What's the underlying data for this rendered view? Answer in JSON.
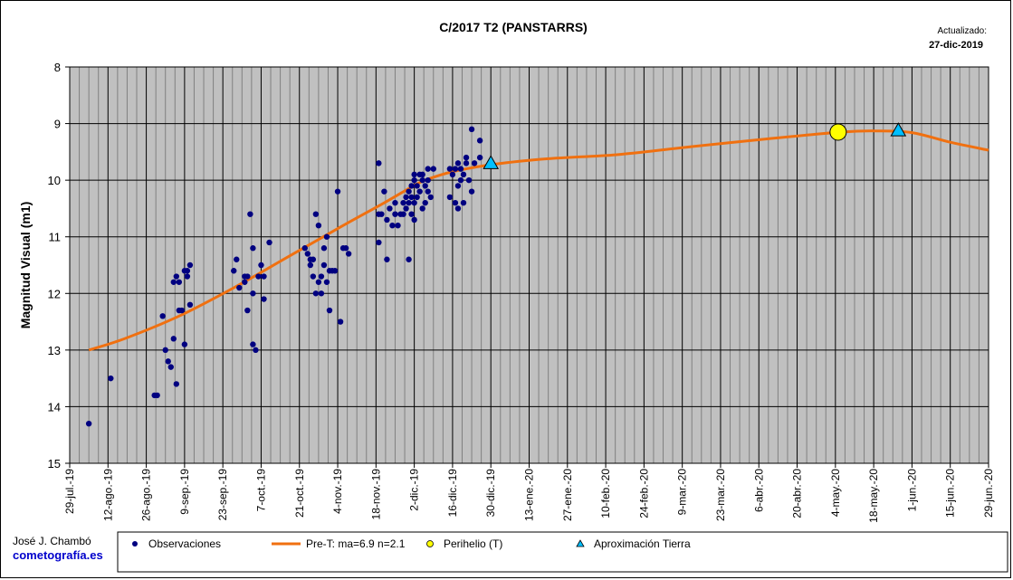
{
  "chart_data": {
    "type": "scatter",
    "title": "C/2017 T2 (PANSTARRS)",
    "ylabel": "Magnitud Visual (m1)",
    "xlabel": "",
    "ylim": [
      8,
      15
    ],
    "y_inverted": true,
    "yticks": [
      "8",
      "9",
      "10",
      "11",
      "12",
      "13",
      "14",
      "15"
    ],
    "x_range_days": [
      0,
      336
    ],
    "x_ticks": [
      {
        "day": 0,
        "label": "29-jul.-19"
      },
      {
        "day": 14,
        "label": "12-ago.-19"
      },
      {
        "day": 28,
        "label": "26-ago.-19"
      },
      {
        "day": 42,
        "label": "9-sep.-19"
      },
      {
        "day": 56,
        "label": "23-sep.-19"
      },
      {
        "day": 70,
        "label": "7-oct.-19"
      },
      {
        "day": 84,
        "label": "21-oct.-19"
      },
      {
        "day": 98,
        "label": "4-nov.-19"
      },
      {
        "day": 112,
        "label": "18-nov.-19"
      },
      {
        "day": 126,
        "label": "2-dic.-19"
      },
      {
        "day": 140,
        "label": "16-dic.-19"
      },
      {
        "day": 154,
        "label": "30-dic.-19"
      },
      {
        "day": 168,
        "label": "13-ene.-20"
      },
      {
        "day": 182,
        "label": "27-ene.-20"
      },
      {
        "day": 196,
        "label": "10-feb.-20"
      },
      {
        "day": 210,
        "label": "24-feb.-20"
      },
      {
        "day": 224,
        "label": "9-mar.-20"
      },
      {
        "day": 238,
        "label": "23-mar.-20"
      },
      {
        "day": 252,
        "label": "6-abr.-20"
      },
      {
        "day": 266,
        "label": "20-abr.-20"
      },
      {
        "day": 280,
        "label": "4-may.-20"
      },
      {
        "day": 294,
        "label": "18-may.-20"
      },
      {
        "day": 308,
        "label": "1-jun.-20"
      },
      {
        "day": 322,
        "label": "15-jun.-20"
      },
      {
        "day": 336,
        "label": "29-jun.-20"
      }
    ],
    "minor_grid_step_days": 3.5,
    "series": [
      {
        "name": "Observaciones",
        "kind": "points",
        "color": "#000080",
        "points": [
          [
            7,
            14.3
          ],
          [
            15,
            13.5
          ],
          [
            31,
            13.8
          ],
          [
            32,
            13.8
          ],
          [
            34,
            12.4
          ],
          [
            35,
            13.0
          ],
          [
            36,
            13.2
          ],
          [
            37,
            13.3
          ],
          [
            38,
            11.8
          ],
          [
            38,
            12.8
          ],
          [
            39,
            11.7
          ],
          [
            39,
            13.6
          ],
          [
            40,
            11.8
          ],
          [
            40,
            12.3
          ],
          [
            41,
            12.3
          ],
          [
            42,
            12.9
          ],
          [
            42,
            11.6
          ],
          [
            43,
            11.7
          ],
          [
            43,
            11.6
          ],
          [
            44,
            11.5
          ],
          [
            44,
            12.2
          ],
          [
            60,
            11.6
          ],
          [
            61,
            11.4
          ],
          [
            62,
            11.9
          ],
          [
            64,
            11.7
          ],
          [
            64,
            11.8
          ],
          [
            65,
            11.7
          ],
          [
            65,
            12.3
          ],
          [
            66,
            10.6
          ],
          [
            67,
            11.2
          ],
          [
            67,
            12.0
          ],
          [
            67,
            12.9
          ],
          [
            68,
            13.0
          ],
          [
            69,
            11.7
          ],
          [
            70,
            11.5
          ],
          [
            71,
            11.7
          ],
          [
            71,
            12.1
          ],
          [
            73,
            11.1
          ],
          [
            86,
            11.2
          ],
          [
            87,
            11.3
          ],
          [
            88,
            11.4
          ],
          [
            88,
            11.5
          ],
          [
            89,
            11.4
          ],
          [
            89,
            11.7
          ],
          [
            90,
            10.6
          ],
          [
            90,
            12.0
          ],
          [
            91,
            11.8
          ],
          [
            91,
            10.8
          ],
          [
            92,
            12.0
          ],
          [
            92,
            11.7
          ],
          [
            93,
            11.2
          ],
          [
            93,
            11.5
          ],
          [
            94,
            11.8
          ],
          [
            94,
            11.0
          ],
          [
            95,
            11.6
          ],
          [
            95,
            12.3
          ],
          [
            96,
            11.6
          ],
          [
            97,
            11.6
          ],
          [
            98,
            10.2
          ],
          [
            99,
            12.5
          ],
          [
            100,
            11.2
          ],
          [
            101,
            11.2
          ],
          [
            102,
            11.3
          ],
          [
            113,
            9.7
          ],
          [
            113,
            10.6
          ],
          [
            113,
            11.1
          ],
          [
            114,
            10.6
          ],
          [
            115,
            10.2
          ],
          [
            116,
            10.7
          ],
          [
            116,
            11.4
          ],
          [
            117,
            10.5
          ],
          [
            118,
            10.8
          ],
          [
            119,
            10.6
          ],
          [
            119,
            10.4
          ],
          [
            120,
            10.8
          ],
          [
            121,
            10.6
          ],
          [
            122,
            10.4
          ],
          [
            122,
            10.6
          ],
          [
            123,
            10.5
          ],
          [
            123,
            10.3
          ],
          [
            124,
            10.4
          ],
          [
            124,
            10.2
          ],
          [
            124,
            11.4
          ],
          [
            125,
            10.1
          ],
          [
            125,
            10.6
          ],
          [
            125,
            10.3
          ],
          [
            126,
            10.0
          ],
          [
            126,
            9.9
          ],
          [
            126,
            10.4
          ],
          [
            126,
            10.7
          ],
          [
            127,
            10.1
          ],
          [
            127,
            10.3
          ],
          [
            128,
            9.9
          ],
          [
            128,
            10.2
          ],
          [
            129,
            10.0
          ],
          [
            129,
            9.9
          ],
          [
            129,
            10.5
          ],
          [
            130,
            10.1
          ],
          [
            130,
            10.4
          ],
          [
            131,
            10.0
          ],
          [
            131,
            9.8
          ],
          [
            131,
            10.2
          ],
          [
            132,
            10.3
          ],
          [
            133,
            9.8
          ],
          [
            139,
            9.8
          ],
          [
            139,
            10.3
          ],
          [
            140,
            9.9
          ],
          [
            141,
            9.8
          ],
          [
            141,
            10.4
          ],
          [
            142,
            10.1
          ],
          [
            142,
            10.5
          ],
          [
            142,
            9.7
          ],
          [
            143,
            10.0
          ],
          [
            143,
            9.8
          ],
          [
            144,
            10.4
          ],
          [
            144,
            9.9
          ],
          [
            145,
            9.7
          ],
          [
            145,
            9.6
          ],
          [
            146,
            10.0
          ],
          [
            147,
            10.2
          ],
          [
            147,
            9.1
          ],
          [
            148,
            9.7
          ],
          [
            150,
            9.3
          ],
          [
            150,
            9.6
          ]
        ]
      },
      {
        "name": "Pre-T: ma=6.9 n=2.1",
        "kind": "line",
        "color": "#f07010",
        "points": [
          [
            7,
            13.0
          ],
          [
            20,
            12.8
          ],
          [
            40,
            12.4
          ],
          [
            60,
            11.9
          ],
          [
            80,
            11.35
          ],
          [
            100,
            10.8
          ],
          [
            115,
            10.4
          ],
          [
            125,
            10.12
          ],
          [
            130,
            10.0
          ],
          [
            140,
            9.85
          ],
          [
            155,
            9.72
          ],
          [
            175,
            9.62
          ],
          [
            200,
            9.55
          ],
          [
            225,
            9.42
          ],
          [
            255,
            9.27
          ],
          [
            282,
            9.15
          ],
          [
            295,
            9.13
          ],
          [
            308,
            9.16
          ],
          [
            322,
            9.33
          ],
          [
            336,
            9.47
          ]
        ]
      },
      {
        "name": "Perihelio (T)",
        "kind": "marker",
        "shape": "circle",
        "color": "#ffff00",
        "points": [
          [
            281,
            9.15
          ]
        ]
      },
      {
        "name": "Aproximación Tierra",
        "kind": "marker",
        "shape": "triangle",
        "color": "#00bfff",
        "points": [
          [
            154,
            9.7
          ],
          [
            303,
            9.12
          ]
        ]
      }
    ]
  },
  "header": {
    "updated_label": "Actualizado:",
    "updated_date": "27-dic-2019"
  },
  "footer": {
    "author": "José J. Chambó",
    "site": "cometografía.es"
  }
}
